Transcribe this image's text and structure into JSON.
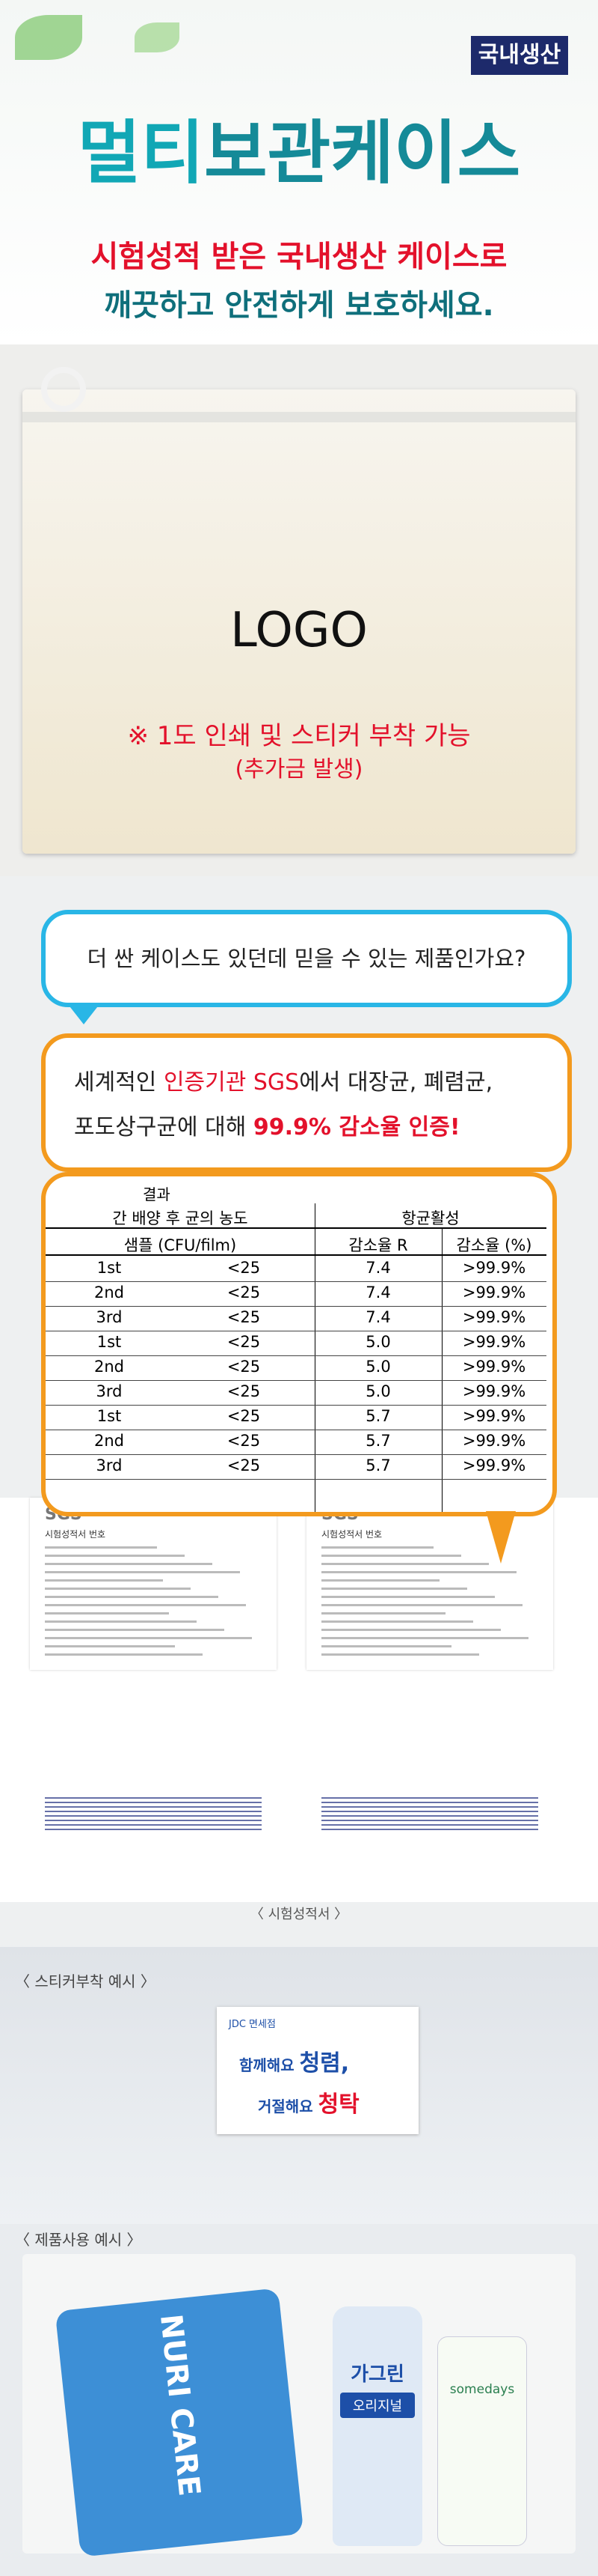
{
  "header": {
    "badge": "국내생산",
    "title_a": "멀티",
    "title_b": "보관케이스",
    "subtitle_1": "시험성적 받은 국내생산 케이스로",
    "subtitle_2": "깨끗하고 안전하게 보호하세요."
  },
  "bag": {
    "logo": "LOGO",
    "note_1": "※ 1도 인쇄 및 스티커 부착 가능",
    "note_2": "(추가금 발생)"
  },
  "question": "더 싼 케이스도 있던데 믿을 수 있는 제품인가요?",
  "answer": {
    "line_1": [
      "세계적인 ",
      "인증기관 SGS",
      "에서 대장균, 폐렴균,"
    ],
    "line_2": [
      "포도상구균에 대해 ",
      "99.9% 감소율 인증!"
    ]
  },
  "table": {
    "caption": "결과",
    "group_1": "간 배양 후 균의 농도",
    "group_2": "항균활성",
    "columns": [
      "샘플 (CFU/film)",
      "감소율 R",
      "감소율 (%)"
    ],
    "rows": [
      [
        "1st",
        "<25",
        "7.4",
        ">99.9%"
      ],
      [
        "2nd",
        "<25",
        "7.4",
        ">99.9%"
      ],
      [
        "3rd",
        "<25",
        "7.4",
        ">99.9%"
      ],
      [
        "1st",
        "<25",
        "5.0",
        ">99.9%"
      ],
      [
        "2nd",
        "<25",
        "5.0",
        ">99.9%"
      ],
      [
        "3rd",
        "<25",
        "5.0",
        ">99.9%"
      ],
      [
        "1st",
        "<25",
        "5.7",
        ">99.9%"
      ],
      [
        "2nd",
        "<25",
        "5.7",
        ">99.9%"
      ],
      [
        "3rd",
        "<25",
        "5.7",
        ">99.9%"
      ]
    ]
  },
  "documents": [
    {
      "logo": "SGS",
      "heading": "시험성적서 번호"
    },
    {
      "logo": "SGS",
      "heading": "시험성적서 번호"
    }
  ],
  "documents_caption": "〈 시험성적서 〉",
  "sticker_section": {
    "label": "〈 스티커부착 예시 〉",
    "brand": "JDC 면세점",
    "line_1a": "함께해요 ",
    "line_1b": "청렴,",
    "line_2a": "거절해요 ",
    "line_2b": "청탁"
  },
  "usage_section": {
    "label": "〈 제품사용 예시 〉",
    "wipes": "NURI CARE",
    "bottle_brand": "가그린",
    "bottle_name": "오리지널",
    "small_bottle": "somedays"
  }
}
